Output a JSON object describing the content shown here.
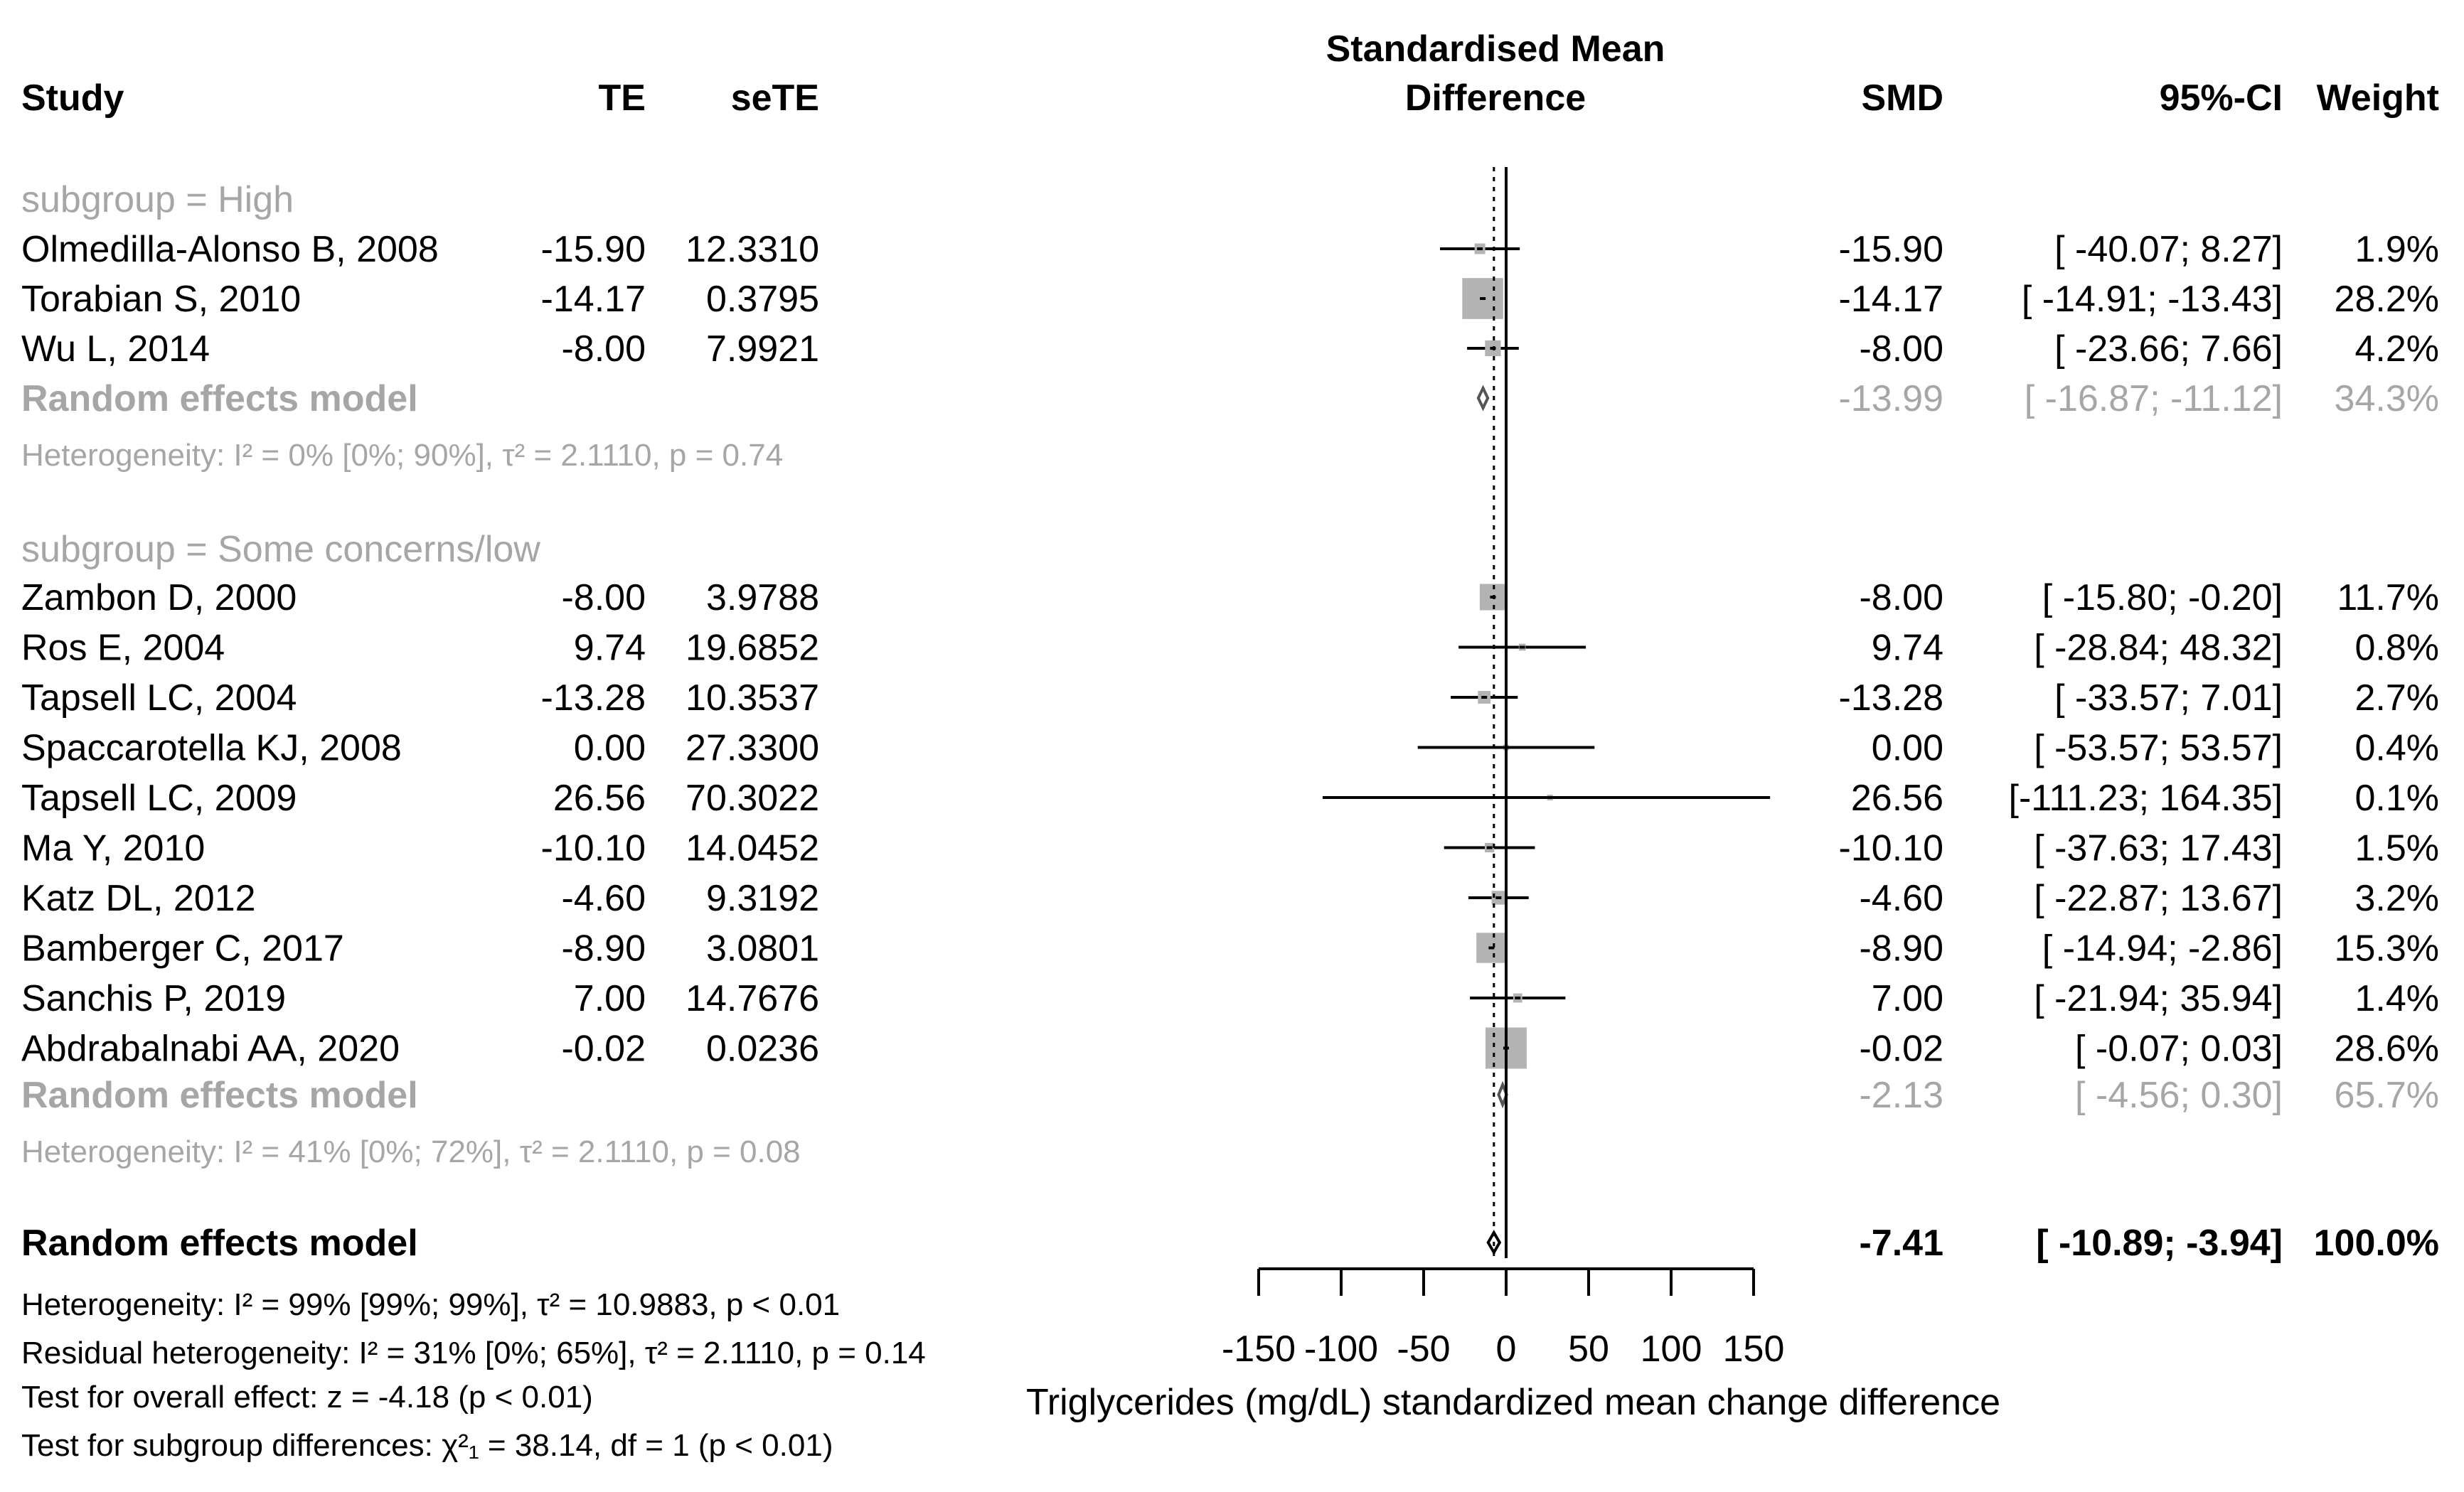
{
  "chart_data": {
    "type": "forest",
    "title": "Standardised Mean Difference",
    "xlabel": "Triglycerides (mg/dL) standardized mean change difference",
    "xlim": [
      -150,
      150
    ],
    "xticks": [
      -150,
      -100,
      -50,
      0,
      50,
      100,
      150
    ],
    "tick_labels": [
      "-150",
      "-100",
      "-50",
      "0",
      "50",
      "100",
      "150"
    ],
    "reference_line": 0,
    "pooled_estimate_line": -7.41,
    "headers": {
      "study": "Study",
      "te": "TE",
      "sete": "seTE",
      "effect_line1": "Standardised Mean",
      "effect_line2": "Difference",
      "smd": "SMD",
      "ci": "95%-CI",
      "weight": "Weight"
    },
    "groups": [
      {
        "label": "subgroup = High",
        "studies": [
          {
            "study": "Olmedilla-Alonso B, 2008",
            "te": "-15.90",
            "sete": "12.3310",
            "smd": "-15.90",
            "ci": "[ -40.07;   8.27]",
            "weight": "1.9%",
            "est": -15.9,
            "lo": -40.07,
            "hi": 8.27,
            "w": 1.9
          },
          {
            "study": "Torabian S, 2010",
            "te": "-14.17",
            "sete": "0.3795",
            "smd": "-14.17",
            "ci": "[ -14.91; -13.43]",
            "weight": "28.2%",
            "est": -14.17,
            "lo": -14.91,
            "hi": -13.43,
            "w": 28.2
          },
          {
            "study": "Wu L, 2014",
            "te": "-8.00",
            "sete": "7.9921",
            "smd": "-8.00",
            "ci": "[ -23.66;   7.66]",
            "weight": "4.2%",
            "est": -8.0,
            "lo": -23.66,
            "hi": 7.66,
            "w": 4.2
          }
        ],
        "model": {
          "label": "Random effects model",
          "smd": "-13.99",
          "ci": "[ -16.87; -11.12]",
          "weight": "34.3%",
          "est": -13.99,
          "lo": -16.87,
          "hi": -11.12
        },
        "heterogeneity": "Heterogeneity: I² = 0% [0%; 90%], τ² = 2.1110, p = 0.74"
      },
      {
        "label": "subgroup = Some concerns/low",
        "studies": [
          {
            "study": "Zambon D, 2000",
            "te": "-8.00",
            "sete": "3.9788",
            "smd": "-8.00",
            "ci": "[ -15.80;  -0.20]",
            "weight": "11.7%",
            "est": -8.0,
            "lo": -15.8,
            "hi": -0.2,
            "w": 11.7
          },
          {
            "study": "Ros E, 2004",
            "te": "9.74",
            "sete": "19.6852",
            "smd": "9.74",
            "ci": "[ -28.84;  48.32]",
            "weight": "0.8%",
            "est": 9.74,
            "lo": -28.84,
            "hi": 48.32,
            "w": 0.8
          },
          {
            "study": "Tapsell LC, 2004",
            "te": "-13.28",
            "sete": "10.3537",
            "smd": "-13.28",
            "ci": "[ -33.57;   7.01]",
            "weight": "2.7%",
            "est": -13.28,
            "lo": -33.57,
            "hi": 7.01,
            "w": 2.7
          },
          {
            "study": "Spaccarotella KJ, 2008",
            "te": "0.00",
            "sete": "27.3300",
            "smd": "0.00",
            "ci": "[ -53.57;  53.57]",
            "weight": "0.4%",
            "est": 0.0,
            "lo": -53.57,
            "hi": 53.57,
            "w": 0.4
          },
          {
            "study": "Tapsell LC, 2009",
            "te": "26.56",
            "sete": "70.3022",
            "smd": "26.56",
            "ci": "[-111.23; 164.35]",
            "weight": "0.1%",
            "est": 26.56,
            "lo": -111.23,
            "hi": 164.35,
            "w": 0.1
          },
          {
            "study": "Ma Y, 2010",
            "te": "-10.10",
            "sete": "14.0452",
            "smd": "-10.10",
            "ci": "[ -37.63;  17.43]",
            "weight": "1.5%",
            "est": -10.1,
            "lo": -37.63,
            "hi": 17.43,
            "w": 1.5
          },
          {
            "study": "Katz DL, 2012",
            "te": "-4.60",
            "sete": "9.3192",
            "smd": "-4.60",
            "ci": "[ -22.87;  13.67]",
            "weight": "3.2%",
            "est": -4.6,
            "lo": -22.87,
            "hi": 13.67,
            "w": 3.2
          },
          {
            "study": "Bamberger C, 2017",
            "te": "-8.90",
            "sete": "3.0801",
            "smd": "-8.90",
            "ci": "[ -14.94;  -2.86]",
            "weight": "15.3%",
            "est": -8.9,
            "lo": -14.94,
            "hi": -2.86,
            "w": 15.3
          },
          {
            "study": "Sanchis P, 2019",
            "te": "7.00",
            "sete": "14.7676",
            "smd": "7.00",
            "ci": "[ -21.94;  35.94]",
            "weight": "1.4%",
            "est": 7.0,
            "lo": -21.94,
            "hi": 35.94,
            "w": 1.4
          },
          {
            "study": "Abdrabalnabi AA, 2020",
            "te": "-0.02",
            "sete": "0.0236",
            "smd": "-0.02",
            "ci": "[  -0.07;   0.03]",
            "weight": "28.6%",
            "est": -0.02,
            "lo": -0.07,
            "hi": 0.03,
            "w": 28.6
          }
        ],
        "model": {
          "label": "Random effects model",
          "smd": "-2.13",
          "ci": "[  -4.56;   0.30]",
          "weight": "65.7%",
          "est": -2.13,
          "lo": -4.56,
          "hi": 0.3
        },
        "heterogeneity": "Heterogeneity: I² = 41% [0%; 72%], τ² = 2.1110, p = 0.08"
      }
    ],
    "overall": {
      "label": "Random effects model",
      "smd": "-7.41",
      "ci": "[ -10.89;  -3.94]",
      "weight": "100.0%",
      "est": -7.41,
      "lo": -10.89,
      "hi": -3.94
    },
    "footer": [
      "Heterogeneity: I² = 99% [99%; 99%], τ² = 10.9883, p < 0.01",
      "Residual heterogeneity: I² = 31% [0%; 65%], τ² = 2.1110, p = 0.14",
      "Test for overall effect: z = -4.18 (p < 0.01)",
      "Test for subgroup differences: χ²₁ = 38.14, df = 1 (p < 0.01)"
    ],
    "colors": {
      "text": "#000000",
      "grey": "#a6a6a6",
      "box": "#b3b3b3",
      "line": "#000000"
    }
  }
}
